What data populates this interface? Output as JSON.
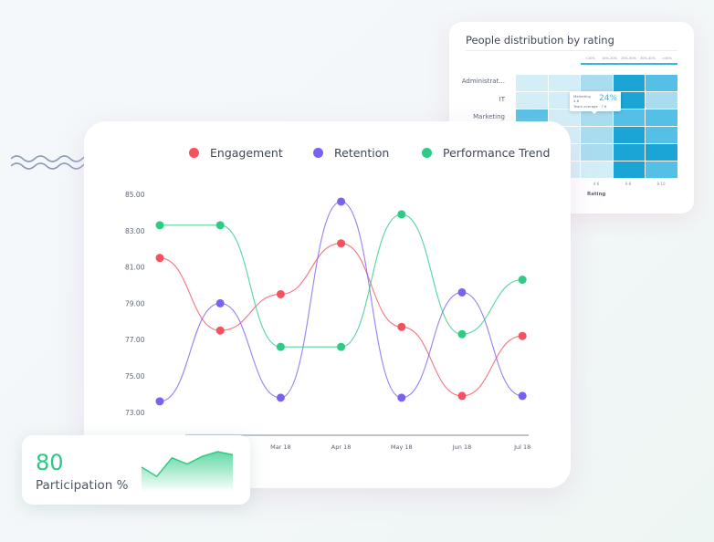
{
  "heatmap": {
    "title": "People distribution by rating",
    "legend": [
      "<10%",
      "10%-20%",
      "20%-30%",
      "30%-40%",
      ">40%"
    ],
    "rows": [
      "Administrat...",
      "IT",
      "Marketing"
    ],
    "x_ticks": [
      "4-6",
      "6-8",
      "8-10"
    ],
    "x_label": "Rating",
    "levels": [
      [
        1,
        1,
        2,
        4,
        3
      ],
      [
        1,
        1,
        2,
        4,
        2
      ],
      [
        3,
        1,
        2,
        3,
        3
      ],
      [
        2,
        1,
        2,
        4,
        3
      ],
      [
        1,
        1,
        2,
        4,
        4
      ],
      [
        1,
        1,
        1,
        4,
        3
      ]
    ],
    "level_colors": [
      "#e4f5fa",
      "#d3eef7",
      "#a9dcef",
      "#55c0e5",
      "#1ba5d6"
    ],
    "tooltip": {
      "line1": "Marketing",
      "line2": "4-6",
      "line3": "Team average · 7.6",
      "value": "24%"
    }
  },
  "chart_data": {
    "type": "line",
    "categories": [
      "",
      "",
      "Mar 18",
      "Apr 18",
      "May 18",
      "Jun 18",
      "Jul 18"
    ],
    "ylim": [
      73,
      85
    ],
    "y_ticks": [
      "85.00",
      "83.00",
      "81.00",
      "79.00",
      "77.00",
      "75.00",
      "73.00"
    ],
    "y_tick_values": [
      85,
      83,
      81,
      79,
      77,
      75,
      73
    ],
    "series": [
      {
        "name": "Engagement",
        "color": "#f5515f",
        "values": [
          81.5,
          77.5,
          79.5,
          82.3,
          77.7,
          73.9,
          77.2
        ]
      },
      {
        "name": "Retention",
        "color": "#7b61f0",
        "values": [
          73.6,
          79.0,
          73.8,
          84.6,
          73.8,
          79.6,
          73.9
        ]
      },
      {
        "name": "Performance Trend",
        "color": "#2ecb85",
        "values": [
          83.3,
          83.3,
          76.6,
          76.6,
          83.9,
          77.3,
          80.3
        ]
      }
    ]
  },
  "participation": {
    "value": "80",
    "label": "Participation %",
    "sparkline": [
      5,
      2,
      8,
      6,
      8.5,
      10,
      9
    ]
  },
  "icons": {
    "wave": "wave-decoration-icon"
  }
}
